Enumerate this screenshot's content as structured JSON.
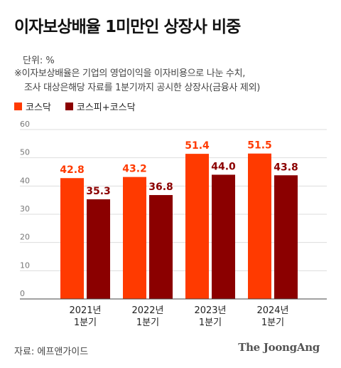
{
  "title": "이자보상배율 1미만인 상장사 비중",
  "unit": "단위: %",
  "note": {
    "line1": "※이자보상배율은 기업의 영업이익을 이자비용으로 나눈 수치,",
    "line2": "조사 대상은해당 자료를 1분기까지 공시한 상장사(금융사 제외)"
  },
  "source": "자료: 에프앤가이드",
  "brand": "The JoongAng",
  "colors": {
    "kosdaq": "#ff3a00",
    "kospi_kosdaq": "#8b0000",
    "grid": "#dddddd"
  },
  "chart_data": {
    "type": "bar",
    "categories": [
      "2021년\n1분기",
      "2022년\n1분기",
      "2023년\n1분기",
      "2024년\n1분기"
    ],
    "series": [
      {
        "name": "코스닥",
        "values": [
          42.8,
          43.2,
          51.4,
          51.5
        ],
        "labels": [
          "42.8",
          "43.2",
          "51.4",
          "51.5"
        ]
      },
      {
        "name": "코스피+코스닥",
        "values": [
          35.3,
          36.8,
          44.0,
          43.8
        ],
        "labels": [
          "35.3",
          "36.8",
          "44.0",
          "43.8"
        ]
      }
    ],
    "yticks": [
      "0",
      "10",
      "20",
      "30",
      "40",
      "50",
      "60"
    ],
    "ylim": [
      0,
      60
    ],
    "grid": true,
    "legend": "top-left"
  }
}
